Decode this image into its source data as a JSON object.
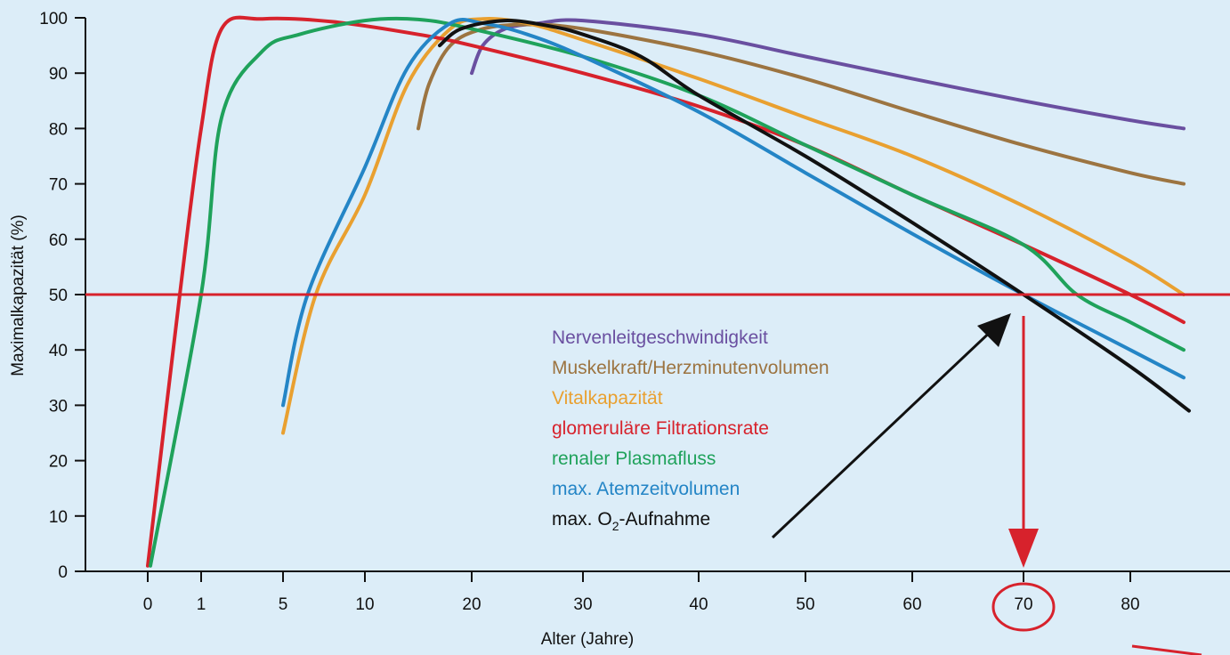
{
  "chart_data": {
    "type": "line",
    "title": "",
    "xlabel": "Alter (Jahre)",
    "ylabel": "Maximalkapazität (%)",
    "ylim": [
      0,
      100
    ],
    "x_ticks": [
      "0",
      "1",
      "5",
      "10",
      "20",
      "30",
      "40",
      "50",
      "60",
      "70",
      "80"
    ],
    "y_ticks": [
      0,
      10,
      20,
      30,
      40,
      50,
      60,
      70,
      80,
      90,
      100
    ],
    "grid": false,
    "legend_position": "inside-center-right",
    "reference_line": {
      "y": 50,
      "color": "#d7222c"
    },
    "highlight": {
      "x_label": "70",
      "color": "#d7222c",
      "note": "Pfeil von 50 % Linie nach unten zu 70 Jahren"
    },
    "series": [
      {
        "name": "Nervenleitgeschwindigkeit",
        "color": "#6a4fa0",
        "points": [
          [
            20,
            90
          ],
          [
            21,
            95
          ],
          [
            23,
            98
          ],
          [
            26,
            99
          ],
          [
            30,
            99.5
          ],
          [
            40,
            97
          ],
          [
            50,
            93
          ],
          [
            60,
            89
          ],
          [
            70,
            85
          ],
          [
            80,
            81.5
          ],
          [
            85,
            80
          ]
        ]
      },
      {
        "name": "Muskelkraft/Herzminutenvolumen",
        "color": "#9c7441",
        "points": [
          [
            15,
            80
          ],
          [
            16,
            88
          ],
          [
            18,
            95
          ],
          [
            21,
            98
          ],
          [
            25,
            98.8
          ],
          [
            30,
            98
          ],
          [
            40,
            94
          ],
          [
            50,
            89
          ],
          [
            60,
            83
          ],
          [
            70,
            77
          ],
          [
            80,
            72
          ],
          [
            85,
            70
          ]
        ]
      },
      {
        "name": "Vitalkapazität",
        "color": "#e9a030",
        "points": [
          [
            5,
            25
          ],
          [
            7,
            50
          ],
          [
            10,
            68
          ],
          [
            14,
            88
          ],
          [
            18,
            98
          ],
          [
            21,
            99.8
          ],
          [
            25,
            99
          ],
          [
            30,
            96
          ],
          [
            40,
            89
          ],
          [
            50,
            82
          ],
          [
            60,
            75
          ],
          [
            70,
            66
          ],
          [
            80,
            56
          ],
          [
            85,
            50
          ]
        ]
      },
      {
        "name": "glomeruläre Filtrationsrate",
        "color": "#d7222c",
        "points": [
          [
            0,
            1
          ],
          [
            0.6,
            50
          ],
          [
            1,
            80
          ],
          [
            2,
            98
          ],
          [
            4,
            99.8
          ],
          [
            8,
            99.3
          ],
          [
            15,
            97
          ],
          [
            20,
            95
          ],
          [
            30,
            90
          ],
          [
            40,
            84
          ],
          [
            50,
            77
          ],
          [
            60,
            68
          ],
          [
            70,
            59
          ],
          [
            80,
            50
          ],
          [
            85,
            45
          ]
        ]
      },
      {
        "name": "renaler Plasmafluss",
        "color": "#1fa25b",
        "points": [
          [
            0.05,
            1
          ],
          [
            1,
            50
          ],
          [
            2,
            82
          ],
          [
            4,
            94
          ],
          [
            6,
            97
          ],
          [
            10,
            99.5
          ],
          [
            15,
            99.7
          ],
          [
            20,
            98
          ],
          [
            30,
            93
          ],
          [
            40,
            86
          ],
          [
            50,
            77
          ],
          [
            60,
            68
          ],
          [
            70,
            59
          ],
          [
            75,
            50
          ],
          [
            80,
            45
          ],
          [
            85,
            40
          ]
        ]
      },
      {
        "name": "max. Atemzeitvolumen",
        "color": "#2485c6",
        "points": [
          [
            5,
            30
          ],
          [
            6.5,
            50
          ],
          [
            10,
            73
          ],
          [
            14,
            91
          ],
          [
            18,
            99
          ],
          [
            21,
            99
          ],
          [
            25,
            97
          ],
          [
            30,
            93
          ],
          [
            40,
            83
          ],
          [
            50,
            72
          ],
          [
            60,
            61
          ],
          [
            70,
            50
          ],
          [
            80,
            40
          ],
          [
            85,
            35
          ]
        ]
      },
      {
        "name": "max. O2-Aufnahme",
        "color": "#111111",
        "points": [
          [
            17,
            95
          ],
          [
            19,
            98
          ],
          [
            23,
            99.5
          ],
          [
            27,
            98.5
          ],
          [
            30,
            97
          ],
          [
            35,
            93
          ],
          [
            40,
            86
          ],
          [
            50,
            75
          ],
          [
            60,
            63
          ],
          [
            70,
            50
          ],
          [
            80,
            37
          ],
          [
            85.5,
            29
          ]
        ]
      }
    ]
  },
  "legend": [
    {
      "label": "Nervenleitgeschwindigkeit",
      "color": "#6a4fa0"
    },
    {
      "label": "Muskelkraft/Herzminutenvolumen",
      "color": "#9c7441"
    },
    {
      "label": "Vitalkapazität",
      "color": "#e9a030"
    },
    {
      "label": "glomeruläre Filtrationsrate",
      "color": "#d7222c"
    },
    {
      "label": "renaler Plasmafluss",
      "color": "#1fa25b"
    },
    {
      "label": "max. Atemzeitvolumen",
      "color": "#2485c6"
    },
    {
      "label_prefix": "max. O",
      "label_subscript": "2",
      "label_suffix": "-Aufnahme",
      "color": "#111111"
    }
  ]
}
